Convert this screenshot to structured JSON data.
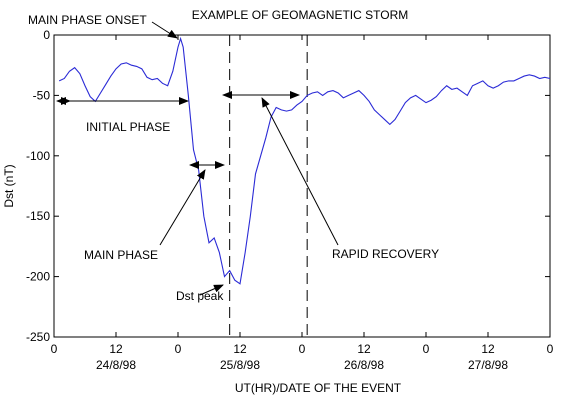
{
  "chart_data": {
    "type": "line",
    "title": "EXAMPLE OF GEOMAGNETIC STORM",
    "xlabel": "UT(HR)/DATE OF THE EVENT",
    "ylabel": "Dst (nT)",
    "ylim": [
      -250,
      0
    ],
    "xlim": [
      0,
      96
    ],
    "yticks": [
      0,
      -50,
      -100,
      -150,
      -200,
      -250
    ],
    "xticks": [
      {
        "x": 0,
        "label": "0"
      },
      {
        "x": 12,
        "label": "12"
      },
      {
        "x": 24,
        "label": "0"
      },
      {
        "x": 36,
        "label": "12"
      },
      {
        "x": 48,
        "label": "0"
      },
      {
        "x": 60,
        "label": "12"
      },
      {
        "x": 72,
        "label": "0"
      },
      {
        "x": 84,
        "label": "12"
      },
      {
        "x": 96,
        "label": "0"
      }
    ],
    "date_labels": [
      {
        "x": 12,
        "label": "24/8/98"
      },
      {
        "x": 36,
        "label": "25/8/98"
      },
      {
        "x": 60,
        "label": "26/8/98"
      },
      {
        "x": 84,
        "label": "27/8/98"
      }
    ],
    "grid": false,
    "phase_lines_x": [
      34,
      49
    ],
    "series": [
      {
        "color": "#2b2bd6",
        "x": [
          1,
          2,
          3,
          4,
          5,
          6,
          7,
          8,
          9,
          10,
          11,
          12,
          13,
          14,
          15,
          16,
          17,
          18,
          19,
          20,
          21,
          22,
          23,
          24,
          24.5,
          25,
          26,
          27,
          28,
          29,
          30,
          31,
          32,
          33,
          34,
          35,
          36,
          37,
          38,
          39,
          40,
          41,
          42,
          43,
          44,
          45,
          46,
          47,
          48,
          49,
          50,
          51,
          52,
          53,
          54,
          55,
          56,
          57,
          58,
          59,
          60,
          61,
          62,
          63,
          64,
          65,
          66,
          67,
          68,
          69,
          70,
          71,
          72,
          73,
          74,
          75,
          76,
          77,
          78,
          79,
          80,
          81,
          82,
          83,
          84,
          85,
          86,
          87,
          88,
          89,
          90,
          91,
          92,
          93,
          94,
          95,
          96
        ],
        "values": [
          -38,
          -36,
          -30,
          -27,
          -32,
          -42,
          -51,
          -55,
          -48,
          -41,
          -34,
          -28,
          -24,
          -23,
          -25,
          -26,
          -28,
          -35,
          -37,
          -36,
          -40,
          -42,
          -30,
          -10,
          -3,
          -10,
          -50,
          -95,
          -112,
          -150,
          -172,
          -168,
          -180,
          -200,
          -195,
          -203,
          -206,
          -180,
          -150,
          -115,
          -100,
          -85,
          -68,
          -60,
          -62,
          -63,
          -62,
          -58,
          -55,
          -50,
          -48,
          -47,
          -50,
          -47,
          -46,
          -48,
          -52,
          -50,
          -48,
          -46,
          -50,
          -55,
          -62,
          -66,
          -70,
          -74,
          -70,
          -63,
          -56,
          -52,
          -50,
          -53,
          -56,
          -54,
          -51,
          -46,
          -42,
          -45,
          -44,
          -47,
          -50,
          -42,
          -40,
          -38,
          -42,
          -44,
          -42,
          -39,
          -38,
          -38,
          -36,
          -34,
          -33,
          -34,
          -36,
          -35,
          -36
        ]
      }
    ],
    "annotations": {
      "main_phase_onset": "MAIN PHASE ONSET",
      "initial_phase": "INITIAL PHASE",
      "main_phase": "MAIN PHASE",
      "dst_peak": "Dst peak",
      "rapid_recovery": "RAPID RECOVERY"
    }
  }
}
